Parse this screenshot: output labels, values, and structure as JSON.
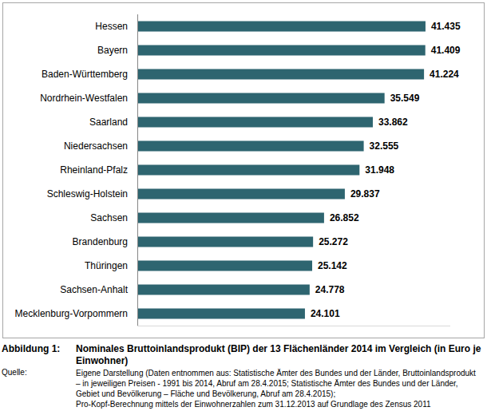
{
  "chart_data": {
    "type": "bar",
    "orientation": "horizontal",
    "figure_label": "Abbildung 1:",
    "title": "Nominales Bruttoinlandsprodukt (BIP) der 13 Flächenländer 2014 im Vergleich (in Euro je Einwohner)",
    "source_label": "Quelle:",
    "source": [
      "Eigene Darstellung (Daten entnommen aus: Statistische Ämter des Bundes und der Länder, Bruttoinlandsprodukt – in jeweiligen Preisen - 1991 bis 2014, Abruf am 28.4.2015; Statistische Ämter des Bundes und der Länder, Gebiet und Bevölkerung – Fläche und Bevölkerung, Abruf am 28.4.2015);",
      "Pro-Kopf-Berechnung mittels der Einwohnerzahlen zum 31.12.2013 auf Grundlage des Zensus 2011"
    ],
    "categories": [
      "Hessen",
      "Bayern",
      "Baden-Württemberg",
      "Nordrhein-Westfalen",
      "Saarland",
      "Niedersachsen",
      "Rheinland-Pfalz",
      "Schleswig-Holstein",
      "Sachsen",
      "Brandenburg",
      "Thüringen",
      "Sachsen-Anhalt",
      "Mecklenburg-Vorpommern"
    ],
    "values": [
      41435,
      41409,
      41224,
      35549,
      33862,
      32555,
      31948,
      29837,
      26852,
      25272,
      25142,
      24778,
      24101
    ],
    "value_labels": [
      "41.435",
      "41.409",
      "41.224",
      "35.549",
      "33.862",
      "32.555",
      "31.948",
      "29.837",
      "26.852",
      "25.272",
      "25.142",
      "24.778",
      "24.101"
    ],
    "data_labels": true,
    "color": "#2e6570",
    "xlim": [
      0,
      45000
    ],
    "xticks": [],
    "tick_labels": "y",
    "grid": false
  }
}
